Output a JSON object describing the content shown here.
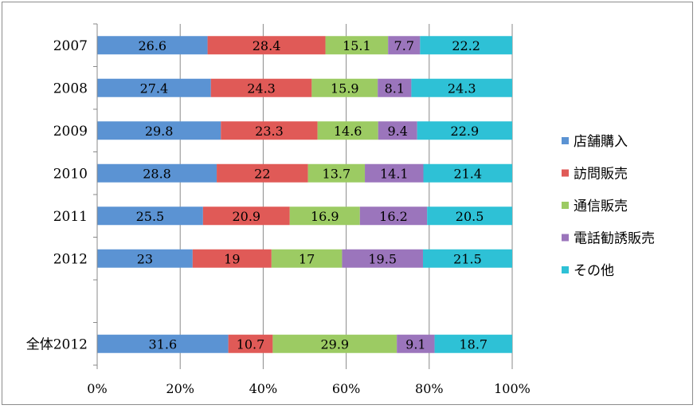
{
  "chart_data": {
    "type": "bar",
    "orientation": "horizontal",
    "stacked": "percent",
    "categories": [
      "2007",
      "2008",
      "2009",
      "2010",
      "2011",
      "2012",
      "",
      "全体2012"
    ],
    "series": [
      {
        "name": "店舗購入",
        "color": "#5B93D3",
        "values": [
          26.6,
          27.4,
          29.8,
          28.8,
          25.5,
          23,
          null,
          31.6
        ]
      },
      {
        "name": "訪問販売",
        "color": "#E05A57",
        "values": [
          28.4,
          24.3,
          23.3,
          22,
          20.9,
          19,
          null,
          10.7
        ]
      },
      {
        "name": "通信販売",
        "color": "#9CCB63",
        "values": [
          15.1,
          15.9,
          14.6,
          13.7,
          16.9,
          17,
          null,
          29.9
        ]
      },
      {
        "name": "電話勧誘販売",
        "color": "#9B75BC",
        "values": [
          7.7,
          8.1,
          9.4,
          14.1,
          16.2,
          19.5,
          null,
          9.1
        ]
      },
      {
        "name": "その他",
        "color": "#2EC1D6",
        "values": [
          22.2,
          24.3,
          22.9,
          21.4,
          20.5,
          21.5,
          null,
          18.7
        ]
      }
    ],
    "x_ticks": [
      "0%",
      "20%",
      "40%",
      "60%",
      "80%",
      "100%"
    ],
    "xlim": [
      0,
      100
    ],
    "grid": "vertical",
    "legend": "right"
  }
}
